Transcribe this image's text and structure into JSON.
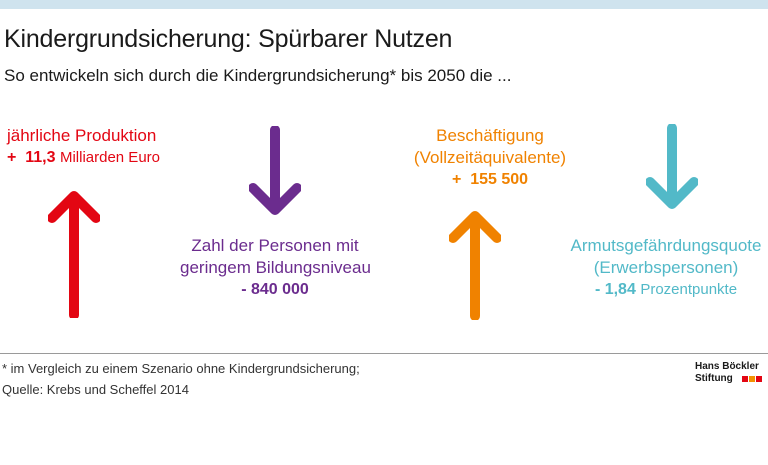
{
  "title": "Kindergrundsicherung: Spürbarer Nutzen",
  "subtitle": "So entwickeln sich durch die Kindergrundsicherung* bis 2050 die ...",
  "colors": {
    "red": "#e30613",
    "purple": "#6b2c8e",
    "orange": "#f08200",
    "teal": "#52b9c8"
  },
  "items": [
    {
      "direction": "up",
      "line1": "jährliche Produktion",
      "value": "+  11,3",
      "unit": "Milliarden Euro"
    },
    {
      "direction": "down",
      "line1": "Zahl der Personen mit",
      "line2": "geringem Bildungsniveau",
      "value": "- 840 000"
    },
    {
      "direction": "up",
      "line1": "Beschäftigung",
      "line2": "(Vollzeitäquivalente)",
      "value": "+  155 500"
    },
    {
      "direction": "down",
      "line1": "Armutsgefährdungsquote",
      "line2": "(Erwerbspersonen)",
      "value": "- 1,84",
      "unit": "Prozentpunkte"
    }
  ],
  "footnote": "* im Vergleich zu einem Szenario ohne Kindergrundsicherung;",
  "source": "Quelle: Krebs und Scheffel 2014",
  "logo": {
    "line1": "Hans Böckler",
    "line2": "Stiftung"
  }
}
